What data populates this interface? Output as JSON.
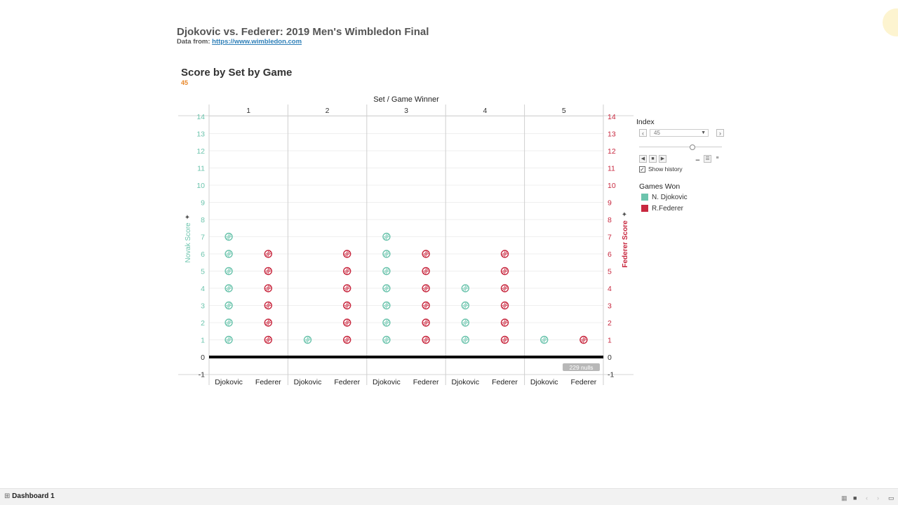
{
  "dashboard": {
    "title": "Djokovic vs. Federer: 2019 Men's Wimbledon Final",
    "data_from_label": "Data from:",
    "data_from_link": "https://www.wimbledon.com",
    "tab_label": "Dashboard 1"
  },
  "sheet": {
    "title": "Score by Set by Game",
    "index_value": "45"
  },
  "colors": {
    "djokovic": "#6cc4ad",
    "federer": "#c8283f",
    "index_orange": "#e8882b"
  },
  "panel": {
    "index_label": "Index",
    "index_value": "45",
    "slider_fraction": 0.65,
    "show_history_label": "Show history",
    "show_history_checked": true,
    "legend_title": "Games Won",
    "legend": [
      {
        "label": "N. Djokovic",
        "color": "#6cc4ad"
      },
      {
        "label": "R.Federer",
        "color": "#c8283f"
      }
    ]
  },
  "chart_data": {
    "type": "scatter",
    "top_header": "Set / Game Winner",
    "sets": [
      "1",
      "2",
      "3",
      "4",
      "5"
    ],
    "players": [
      "Djokovic",
      "Federer"
    ],
    "ylabel_left": "Novak Score",
    "ylabel_right": "Federer Score",
    "ylim": [
      -1,
      14
    ],
    "yticks": [
      -1,
      0,
      1,
      2,
      3,
      4,
      5,
      6,
      7,
      8,
      9,
      10,
      11,
      12,
      13,
      14
    ],
    "series": [
      {
        "name": "N. Djokovic",
        "color": "#6cc4ad",
        "games": [
          [
            1,
            2,
            3,
            4,
            5,
            6,
            7
          ],
          [
            1
          ],
          [
            1,
            2,
            3,
            4,
            5,
            6,
            7
          ],
          [
            1,
            2,
            3,
            4
          ],
          [
            1
          ]
        ]
      },
      {
        "name": "R.Federer",
        "color": "#c8283f",
        "games": [
          [
            1,
            2,
            3,
            4,
            5,
            6
          ],
          [
            1,
            2,
            3,
            4,
            5,
            6
          ],
          [
            1,
            2,
            3,
            4,
            5,
            6
          ],
          [
            1,
            2,
            3,
            4,
            5,
            6
          ],
          [
            1
          ]
        ]
      }
    ],
    "nulls_badge": "229 nulls"
  }
}
